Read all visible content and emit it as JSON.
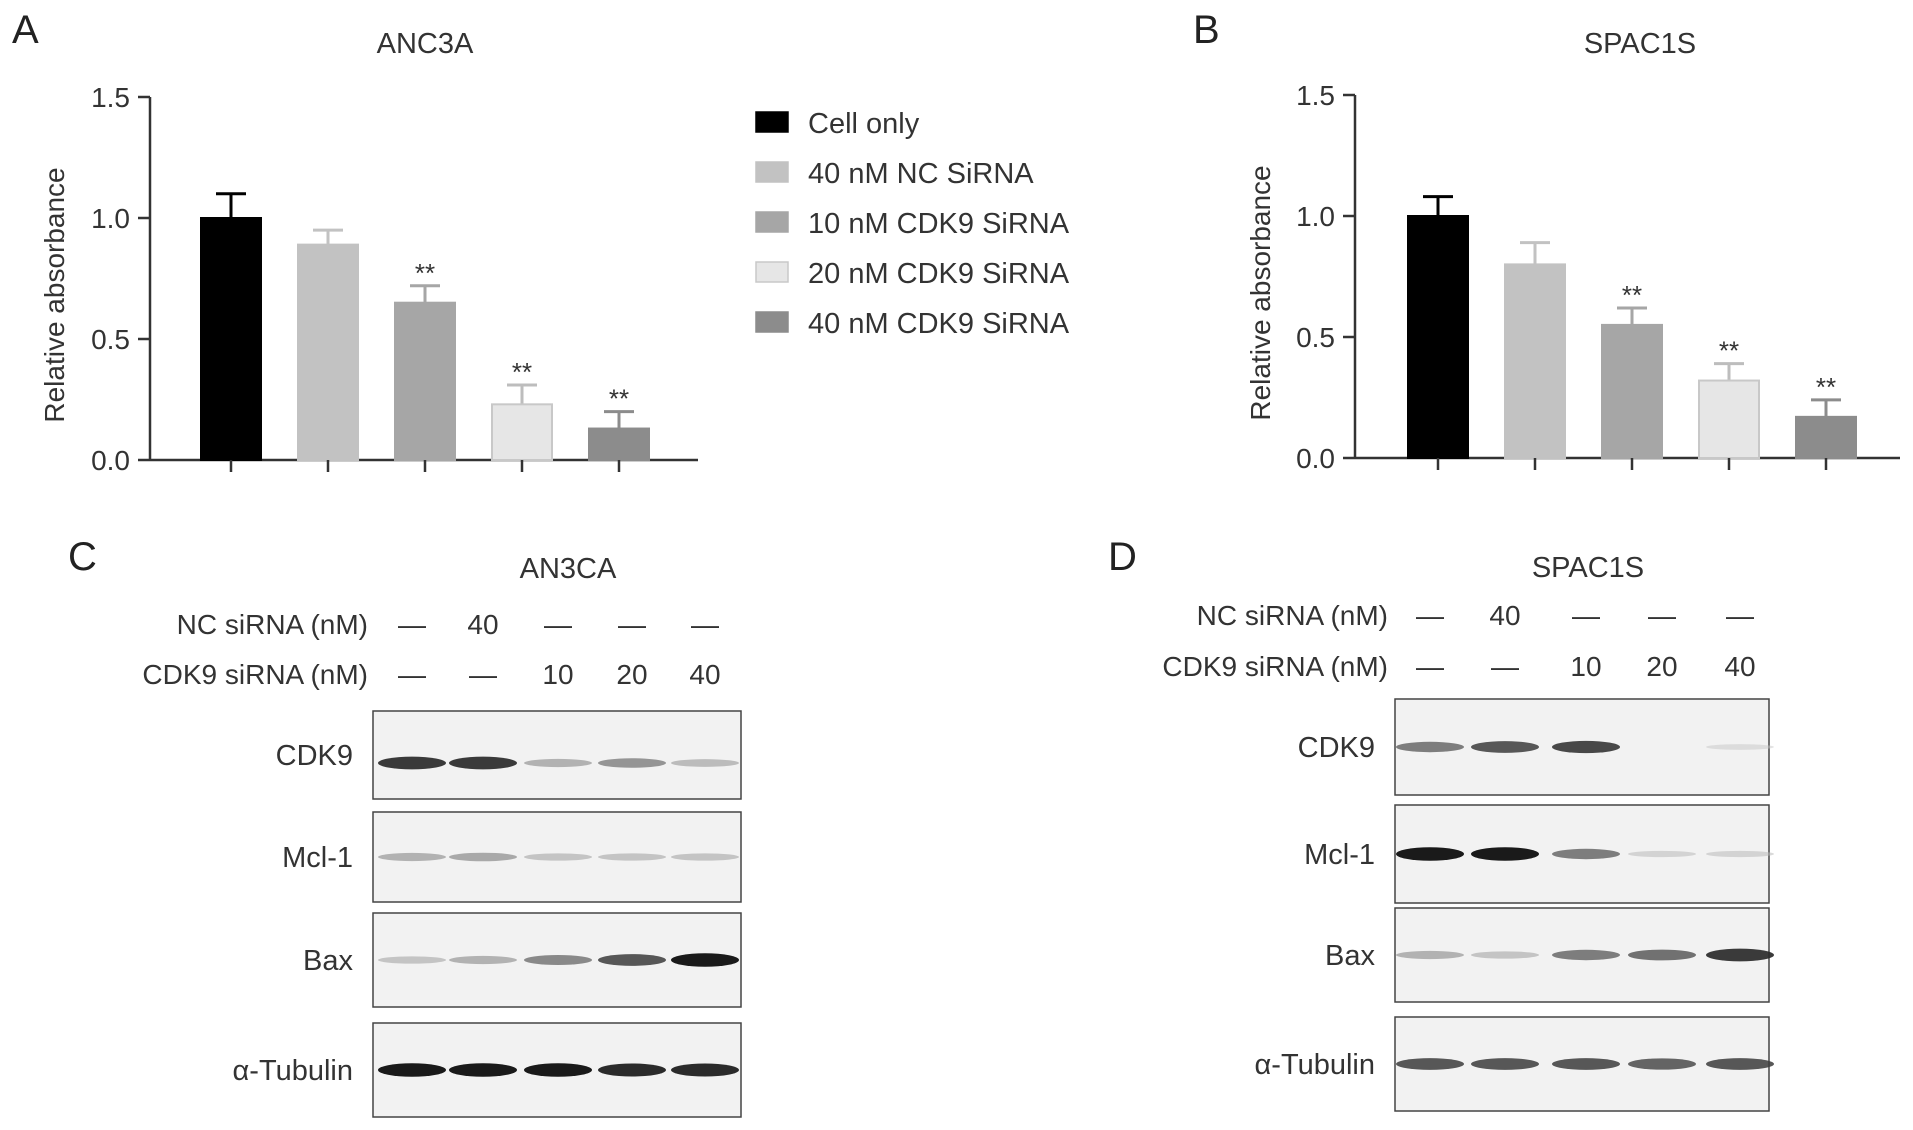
{
  "panels": {
    "A": "A",
    "B": "B",
    "C": "C",
    "D": "D"
  },
  "significance_mark": "**",
  "legend": {
    "entries": [
      {
        "label": "Cell only",
        "color": "#000000"
      },
      {
        "label": "40 nM NC SiRNA",
        "color": "#c2c2c2"
      },
      {
        "label": "10 nM CDK9 SiRNA",
        "color": "#a6a6a6"
      },
      {
        "label": "20 nM CDK9 SiRNA",
        "color": "#e6e6e6"
      },
      {
        "label": "40 nM CDK9 SiRNA",
        "color": "#8c8c8c"
      }
    ]
  },
  "chart_data": [
    {
      "type": "bar",
      "title": "ANC3A",
      "ylabel": "Relative absorbance",
      "xlabel": "",
      "ylim": [
        0,
        1.5
      ],
      "yticks": [
        "0.0",
        "0.5",
        "1.0",
        "1.5"
      ],
      "categories": [
        "Cell only",
        "40 nM NC SiRNA",
        "10 nM CDK9 SiRNA",
        "20 nM CDK9 SiRNA",
        "40 nM CDK9 SiRNA"
      ],
      "values": [
        1.0,
        0.89,
        0.65,
        0.23,
        0.13
      ],
      "errors": [
        0.1,
        0.06,
        0.07,
        0.08,
        0.07
      ],
      "significance": [
        "",
        "",
        "**",
        "**",
        "**"
      ],
      "colors": [
        "#000000",
        "#c2c2c2",
        "#a6a6a6",
        "#e6e6e6",
        "#8c8c8c"
      ],
      "legend": "right",
      "grid": false
    },
    {
      "type": "bar",
      "title": "SPAC1S",
      "ylabel": "Relative absorbance",
      "xlabel": "",
      "ylim": [
        0,
        1.5
      ],
      "yticks": [
        "0.0",
        "0.5",
        "1.0",
        "1.5"
      ],
      "categories": [
        "Cell only",
        "40 nM NC SiRNA",
        "10 nM CDK9 SiRNA",
        "20 nM CDK9 SiRNA",
        "40 nM CDK9 SiRNA"
      ],
      "values": [
        1.0,
        0.8,
        0.55,
        0.32,
        0.17
      ],
      "errors": [
        0.08,
        0.09,
        0.07,
        0.07,
        0.07
      ],
      "significance": [
        "",
        "",
        "**",
        "**",
        "**"
      ],
      "colors": [
        "#000000",
        "#c2c2c2",
        "#a6a6a6",
        "#e6e6e6",
        "#8c8c8c"
      ],
      "grid": false
    }
  ],
  "blots": [
    {
      "title": "AN3CA",
      "rows": [
        {
          "label": "NC siRNA (nM)",
          "values": [
            "—",
            "40",
            "—",
            "—",
            "—"
          ]
        },
        {
          "label": "CDK9 siRNA (nM)",
          "values": [
            "—",
            "—",
            "10",
            "20",
            "40"
          ]
        }
      ],
      "proteins": [
        {
          "name": "CDK9",
          "intensities": [
            0.85,
            0.85,
            0.35,
            0.5,
            0.3
          ]
        },
        {
          "name": "Mcl-1",
          "intensities": [
            0.35,
            0.4,
            0.25,
            0.25,
            0.25
          ]
        },
        {
          "name": "Bax",
          "intensities": [
            0.25,
            0.35,
            0.55,
            0.75,
            0.95
          ]
        },
        {
          "name": "α-Tubulin",
          "intensities": [
            0.95,
            0.95,
            0.95,
            0.9,
            0.9
          ]
        }
      ]
    },
    {
      "title": "SPAC1S",
      "rows": [
        {
          "label": "NC siRNA (nM)",
          "values": [
            "—",
            "40",
            "—",
            "—",
            "—"
          ]
        },
        {
          "label": "CDK9 siRNA (nM)",
          "values": [
            "—",
            "—",
            "10",
            "20",
            "40"
          ]
        }
      ],
      "proteins": [
        {
          "name": "CDK9",
          "intensities": [
            0.6,
            0.75,
            0.8,
            0.0,
            0.08
          ]
        },
        {
          "name": "Mcl-1",
          "intensities": [
            0.95,
            0.95,
            0.6,
            0.15,
            0.15
          ]
        },
        {
          "name": "Bax",
          "intensities": [
            0.35,
            0.25,
            0.6,
            0.65,
            0.85
          ]
        },
        {
          "name": "α-Tubulin",
          "intensities": [
            0.75,
            0.75,
            0.75,
            0.7,
            0.75
          ]
        }
      ]
    }
  ]
}
